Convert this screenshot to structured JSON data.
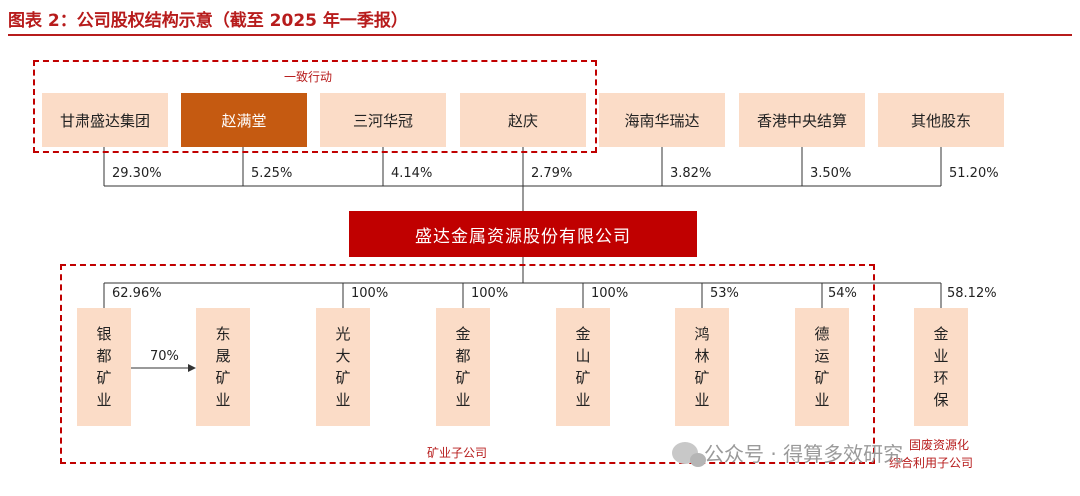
{
  "title": "图表 2：公司股权结构示意（截至 2025 年一季报）",
  "group_top_label": "一致行动",
  "group_bottom_label": "矿业子公司",
  "group_right_label_line1": "固废资源化",
  "group_right_label_line2": "综合利用子公司",
  "center_company": "盛达金属资源股份有限公司",
  "shareholders": [
    {
      "name": "甘肃盛达集团",
      "pct": "29.30%",
      "highlight": false
    },
    {
      "name": "赵满堂",
      "pct": "5.25%",
      "highlight": true
    },
    {
      "name": "三河华冠",
      "pct": "4.14%",
      "highlight": false
    },
    {
      "name": "赵庆",
      "pct": "2.79%",
      "highlight": false
    },
    {
      "name": "海南华瑞达",
      "pct": "3.82%",
      "highlight": false
    },
    {
      "name": "香港中央结算",
      "pct": "3.50%",
      "highlight": false
    },
    {
      "name": "其他股东",
      "pct": "51.20%",
      "highlight": false
    }
  ],
  "subsidiaries": [
    {
      "name_chars": [
        "银",
        "都",
        "矿",
        "业"
      ],
      "pct": "62.96%"
    },
    {
      "name_chars": [
        "东",
        "晟",
        "矿",
        "业"
      ],
      "pct": ""
    },
    {
      "name_chars": [
        "光",
        "大",
        "矿",
        "业"
      ],
      "pct": "100%"
    },
    {
      "name_chars": [
        "金",
        "都",
        "矿",
        "业"
      ],
      "pct": "100%"
    },
    {
      "name_chars": [
        "金",
        "山",
        "矿",
        "业"
      ],
      "pct": "100%"
    },
    {
      "name_chars": [
        "鸿",
        "林",
        "矿",
        "业"
      ],
      "pct": "53%"
    },
    {
      "name_chars": [
        "德",
        "运",
        "矿",
        "业"
      ],
      "pct": "54%"
    },
    {
      "name_chars": [
        "金",
        "业",
        "环",
        "保"
      ],
      "pct": "58.12%"
    }
  ],
  "inner_link_pct": "70%",
  "watermark": "公众号 · 得算多效研究",
  "colors": {
    "accent": "#c00000",
    "box_fill": "#fbdcc7",
    "highlight": "#c55a11"
  }
}
